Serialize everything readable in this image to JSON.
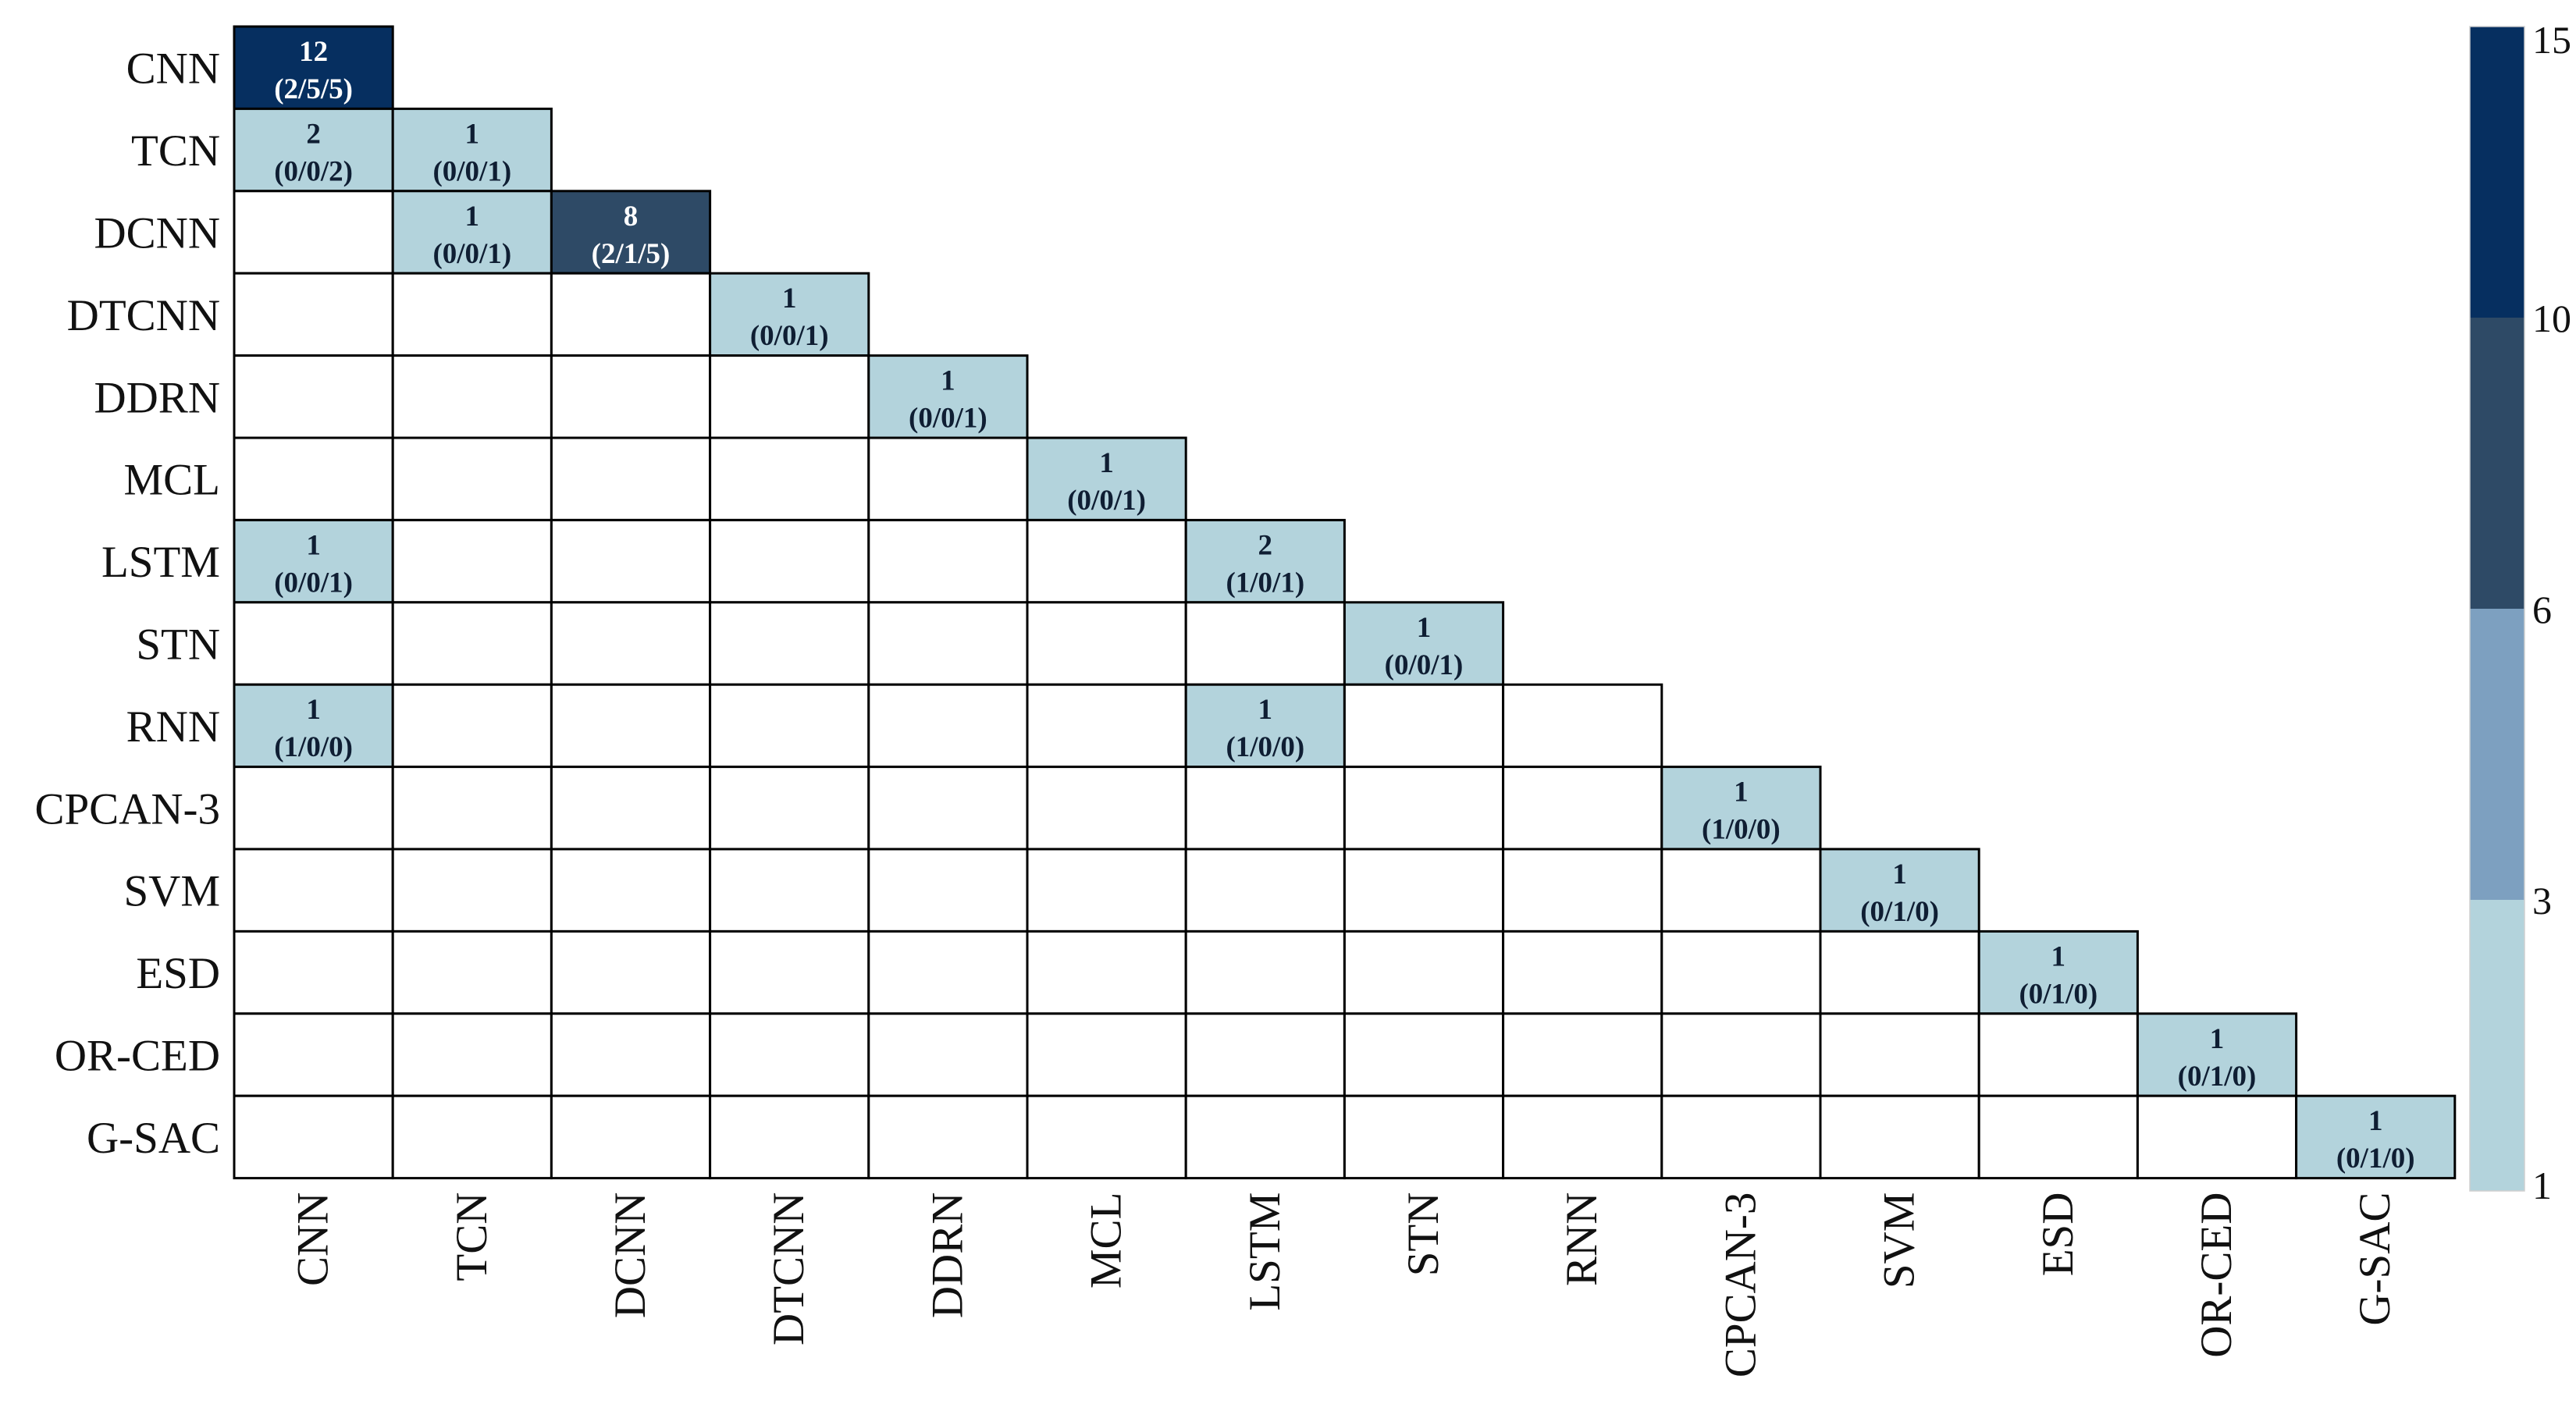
{
  "chart_data": {
    "type": "heatmap",
    "title": "",
    "xlabel": "",
    "ylabel": "",
    "categories": [
      "CNN",
      "TCN",
      "DCNN",
      "DTCNN",
      "DDRN",
      "MCL",
      "LSTM",
      "STN",
      "RNN",
      "CPCAN-3",
      "SVM",
      "ESD",
      "OR-CED",
      "G-SAC"
    ],
    "cells": [
      {
        "row": "CNN",
        "col": "CNN",
        "value": 12,
        "detail": "(2/5/5)"
      },
      {
        "row": "TCN",
        "col": "CNN",
        "value": 2,
        "detail": "(0/0/2)"
      },
      {
        "row": "TCN",
        "col": "TCN",
        "value": 1,
        "detail": "(0/0/1)"
      },
      {
        "row": "DCNN",
        "col": "TCN",
        "value": 1,
        "detail": "(0/0/1)"
      },
      {
        "row": "DCNN",
        "col": "DCNN",
        "value": 8,
        "detail": "(2/1/5)"
      },
      {
        "row": "DTCNN",
        "col": "DTCNN",
        "value": 1,
        "detail": "(0/0/1)"
      },
      {
        "row": "DDRN",
        "col": "DDRN",
        "value": 1,
        "detail": "(0/0/1)"
      },
      {
        "row": "MCL",
        "col": "MCL",
        "value": 1,
        "detail": "(0/0/1)"
      },
      {
        "row": "LSTM",
        "col": "CNN",
        "value": 1,
        "detail": "(0/0/1)"
      },
      {
        "row": "LSTM",
        "col": "LSTM",
        "value": 2,
        "detail": "(1/0/1)"
      },
      {
        "row": "STN",
        "col": "STN",
        "value": 1,
        "detail": "(0/0/1)"
      },
      {
        "row": "RNN",
        "col": "CNN",
        "value": 1,
        "detail": "(1/0/0)"
      },
      {
        "row": "RNN",
        "col": "LSTM",
        "value": 1,
        "detail": "(1/0/0)"
      },
      {
        "row": "CPCAN-3",
        "col": "CPCAN-3",
        "value": 1,
        "detail": "(1/0/0)"
      },
      {
        "row": "SVM",
        "col": "SVM",
        "value": 1,
        "detail": "(0/1/0)"
      },
      {
        "row": "ESD",
        "col": "ESD",
        "value": 1,
        "detail": "(0/1/0)"
      },
      {
        "row": "OR-CED",
        "col": "OR-CED",
        "value": 1,
        "detail": "(0/1/0)"
      },
      {
        "row": "G-SAC",
        "col": "G-SAC",
        "value": 1,
        "detail": "(0/1/0)"
      }
    ],
    "colorbar": {
      "range": [
        1,
        15
      ],
      "ticks": [
        "1",
        "3",
        "6",
        "10",
        "15"
      ],
      "bins": [
        {
          "min": 1,
          "max": 3,
          "color": "#b3d3dc"
        },
        {
          "min": 3,
          "max": 6,
          "color": "#7da0c0"
        },
        {
          "min": 6,
          "max": 10,
          "color": "#2e4a66"
        },
        {
          "min": 10,
          "max": 15,
          "color": "#062f60"
        }
      ],
      "placement": "right"
    },
    "grid": true,
    "layout": "lower-triangular"
  }
}
